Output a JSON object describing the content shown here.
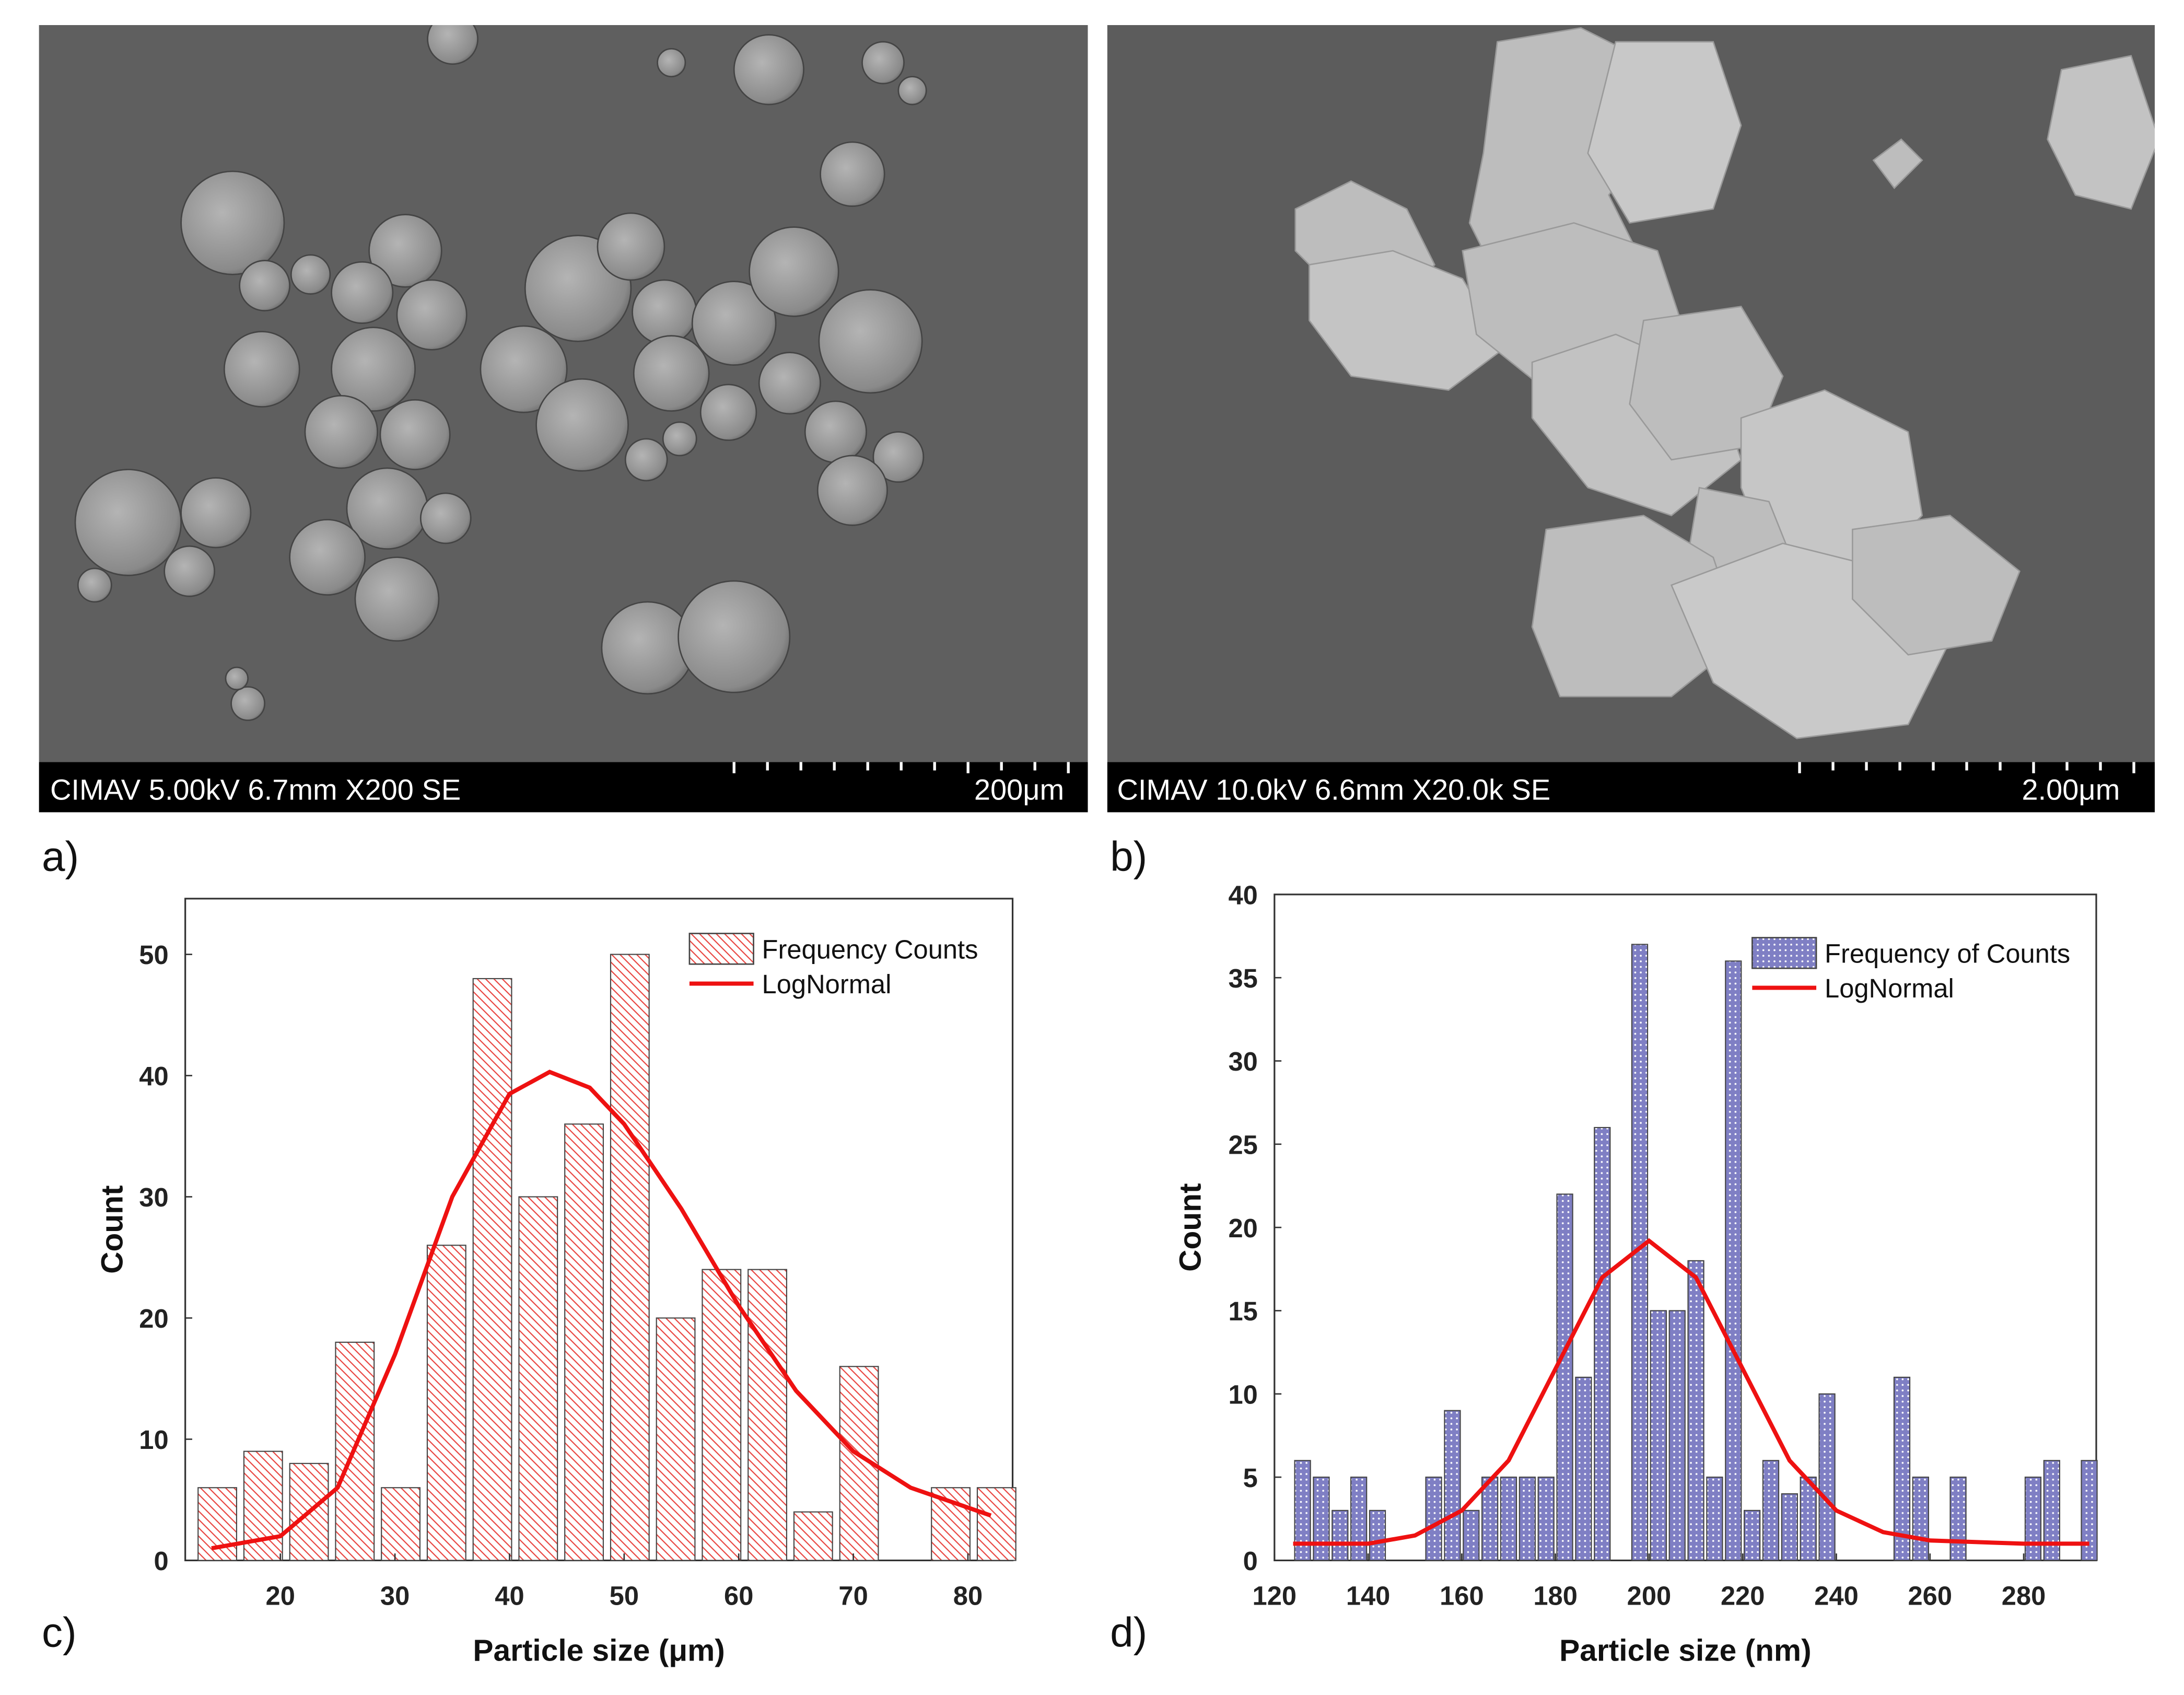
{
  "images": [
    {
      "label": "a)",
      "caption": "CIMAV 5.00kV 6.7mm X200 SE",
      "scale": "200μm"
    },
    {
      "label": "b)",
      "caption": "CIMAV 10.0kV 6.6mm X20.0k SE",
      "scale": "2.00μm"
    }
  ],
  "chart_data": [
    {
      "type": "histogram",
      "label": "c)",
      "xlabel": "Particle size (μm)",
      "ylabel": "Count",
      "name": "Frequency Counts",
      "color": "#e8413c",
      "pattern": "hatch",
      "bins": [
        12.5,
        16.5,
        20.5,
        24.5,
        28.5,
        32.5,
        36.5,
        40.5,
        44.5,
        48.5,
        52.5,
        56.5,
        60.5,
        64.5,
        68.5,
        72.5,
        76.5,
        80.5,
        84.5
      ],
      "values": [
        6,
        9,
        8,
        18,
        6,
        26,
        48,
        30,
        36,
        50,
        20,
        24,
        24,
        4,
        16,
        0,
        6,
        6
      ],
      "fit": {
        "name": "LogNormal",
        "color": "#ee1111",
        "x": [
          14,
          20,
          25,
          30,
          35,
          40,
          43.5,
          47,
          50,
          55,
          60,
          65,
          70,
          75,
          82
        ],
        "y": [
          1,
          2,
          6,
          17,
          30,
          38.5,
          40.3,
          39,
          36,
          29,
          21,
          14,
          9,
          6,
          3.7
        ]
      },
      "xlim": [
        11.7,
        83.9
      ],
      "ylim": [
        0,
        54.6
      ],
      "xticks": [
        20,
        30,
        40,
        50,
        60,
        70,
        80
      ],
      "yticks": [
        0,
        10,
        20,
        30,
        40,
        50
      ]
    },
    {
      "type": "histogram",
      "label": "d)",
      "xlabel": "Particle size (nm)",
      "ylabel": "Count",
      "name": "Frequency of Counts",
      "color": "#7f7fc4",
      "pattern": "dots",
      "bins": [
        124,
        128,
        132,
        136,
        140,
        144,
        148,
        152,
        156,
        160,
        164,
        168,
        172,
        176,
        180,
        184,
        188,
        192,
        196,
        200,
        204,
        208,
        212,
        216,
        220,
        224,
        228,
        232,
        236,
        240,
        244,
        248,
        252,
        256,
        260,
        264,
        268,
        272,
        276,
        280,
        284,
        288,
        292,
        296
      ],
      "values": [
        6,
        5,
        3,
        5,
        3,
        0,
        0,
        5,
        9,
        3,
        5,
        5,
        5,
        5,
        22,
        11,
        26,
        0,
        37,
        15,
        15,
        18,
        5,
        36,
        3,
        6,
        4,
        5,
        10,
        0,
        0,
        0,
        11,
        5,
        0,
        5,
        0,
        0,
        0,
        5,
        6,
        0,
        6
      ],
      "fit": {
        "name": "LogNormal",
        "color": "#ee1111",
        "x": [
          124,
          140,
          150,
          160,
          170,
          180,
          190,
          200,
          210,
          220,
          230,
          240,
          250,
          260,
          280,
          294
        ],
        "y": [
          1,
          1,
          1.5,
          3,
          6,
          11.5,
          17,
          19.2,
          17,
          11.5,
          6,
          3,
          1.7,
          1.2,
          1,
          1
        ]
      },
      "xlim": [
        120,
        295.5
      ],
      "ylim": [
        0,
        40
      ],
      "xticks": [
        120,
        140,
        160,
        180,
        200,
        220,
        240,
        260,
        280
      ],
      "yticks": [
        0,
        5,
        10,
        15,
        20,
        25,
        30,
        35,
        40
      ]
    }
  ]
}
